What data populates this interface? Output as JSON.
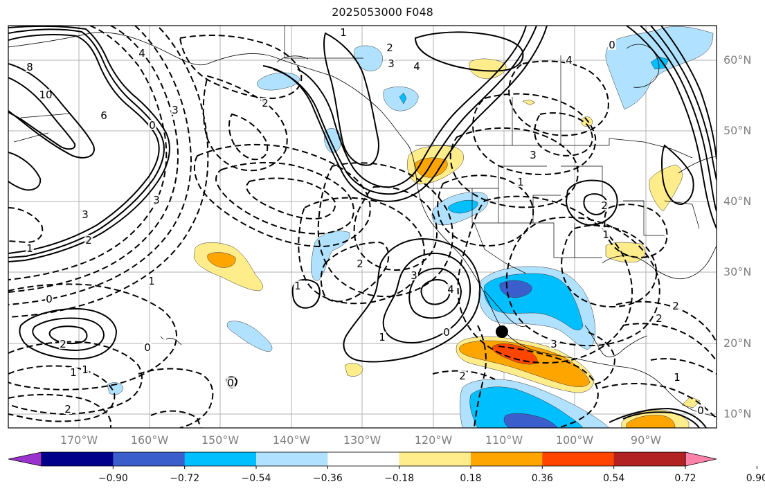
{
  "title": "2025053000 F048",
  "lat_labels": [
    "60°N",
    "50°N",
    "40°N",
    "30°N",
    "20°N",
    "10°N"
  ],
  "lon_labels": [
    "170°W",
    "160°W",
    "150°W",
    "140°W",
    "130°W",
    "120°W",
    "110°W",
    "100°W",
    "90°W"
  ],
  "colorbar": {
    "ticks": [
      "−0.90",
      "−0.72",
      "−0.54",
      "−0.36",
      "−0.18",
      "0.18",
      "0.36",
      "0.54",
      "0.72",
      "0.90"
    ],
    "colors": [
      "#9a32cd",
      "#00008b",
      "#3a5fcd",
      "#00bfff",
      "#b0e2ff",
      "#ffffff",
      "#ffec8b",
      "#ffa500",
      "#ff4500",
      "#b22222",
      "#ff82ab"
    ]
  },
  "contour_labels": [
    "1",
    "2",
    "3",
    "4",
    "8",
    "10",
    "6",
    "0",
    "4",
    "3",
    "2",
    "3",
    "3",
    "2",
    "1",
    "0",
    "1",
    "2",
    "0",
    "1",
    "2",
    "1",
    "0",
    "2",
    "1",
    "3",
    "4",
    "0",
    "1",
    "2",
    "3",
    "4",
    "1",
    "3",
    "2",
    "2",
    "1",
    "0",
    "1",
    "2",
    "0"
  ],
  "fill_colors": {
    "light_blue": "#b0e2ff",
    "blue": "#00bfff",
    "mid_blue": "#3a5fcd",
    "yellow": "#ffec8b",
    "orange": "#ffa500",
    "red_orange": "#ff4500"
  }
}
